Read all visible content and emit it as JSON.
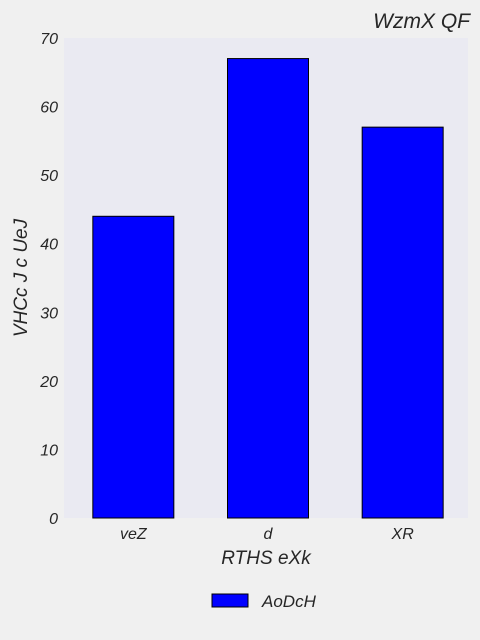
{
  "chart_data": {
    "type": "bar",
    "title": "WzmX QF",
    "xlabel": "RTHS eXk",
    "ylabel": "VHCc J c  UeJ",
    "categories": [
      "veZ",
      "d",
      "XR"
    ],
    "series": [
      {
        "name": "AoDcH",
        "values": [
          44,
          67,
          57
        ]
      }
    ],
    "ylim": [
      0,
      70
    ],
    "yticks": [
      0,
      10,
      20,
      30,
      40,
      50,
      60,
      70
    ],
    "grid": false,
    "legend_position": "bottom-center",
    "colors": {
      "bar": "#0000ff",
      "bar_edge": "#000000",
      "plot_background": "#eaeaf2",
      "figure_background": "#f0f0f0"
    }
  }
}
